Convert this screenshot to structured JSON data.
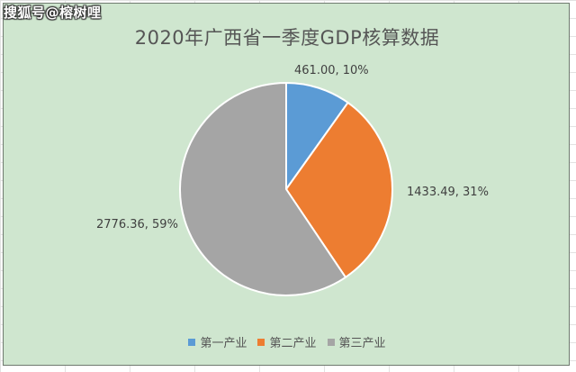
{
  "watermark": "搜狐号@榕树哩",
  "chart_data": {
    "type": "pie",
    "title": "2020年广西省一季度GDP核算数据",
    "slices": [
      {
        "name": "第一产业",
        "value": 461.0,
        "percent": 10,
        "label": "461.00, 10%",
        "color": "#5b9bd5"
      },
      {
        "name": "第二产业",
        "value": 1433.49,
        "percent": 31,
        "label": "1433.49, 31%",
        "color": "#ed7d31"
      },
      {
        "name": "第三产业",
        "value": 2776.36,
        "percent": 59,
        "label": "2776.36, 59%",
        "color": "#a5a5a5"
      }
    ],
    "legend_position": "bottom",
    "start_angle": "12 o'clock, clockwise"
  }
}
